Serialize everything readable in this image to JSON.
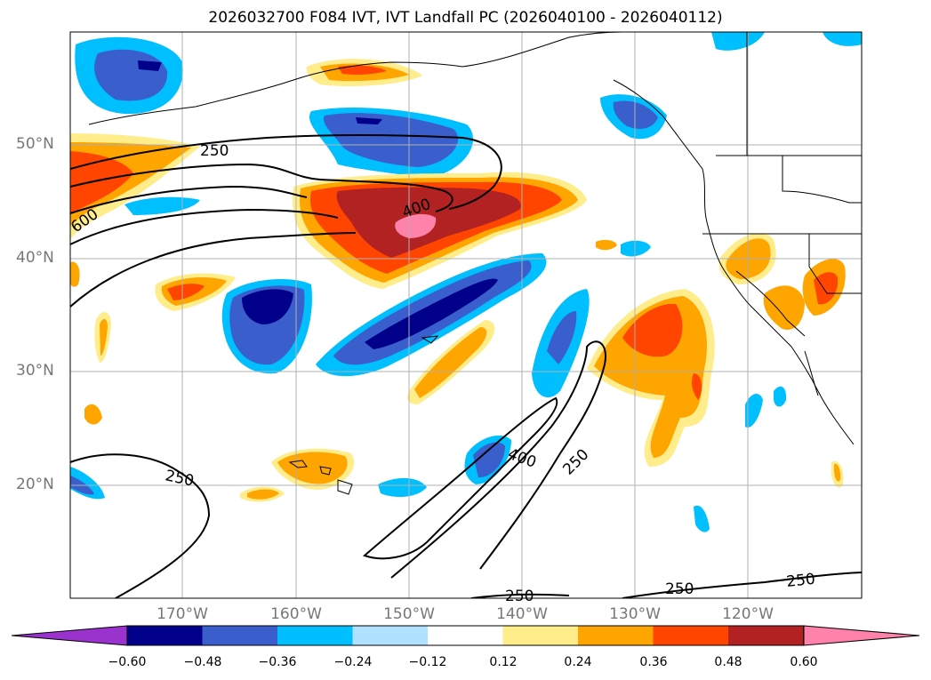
{
  "title": "2026032700 F084 IVT, IVT Landfall PC (2026040100 - 2026040112)",
  "map": {
    "projection": "PlateCarree",
    "lon_range": [
      -180,
      -110
    ],
    "lat_range": [
      10,
      60
    ],
    "lat_ticks": [
      {
        "value": 50,
        "label": "50°N"
      },
      {
        "value": 40,
        "label": "40°N"
      },
      {
        "value": 30,
        "label": "30°N"
      },
      {
        "value": 20,
        "label": "20°N"
      }
    ],
    "lon_ticks": [
      {
        "value": -170,
        "label": "170°W"
      },
      {
        "value": -160,
        "label": "160°W"
      },
      {
        "value": -150,
        "label": "150°W"
      },
      {
        "value": -140,
        "label": "140°W"
      },
      {
        "value": -130,
        "label": "130°W"
      },
      {
        "value": -120,
        "label": "120°W"
      }
    ],
    "contour_labels": [
      "250",
      "600",
      "400",
      "400",
      "250",
      "250",
      "250",
      "250",
      "250"
    ]
  },
  "colorbar": {
    "colors": [
      "#9a32cd",
      "#00008b",
      "#3a5fcd",
      "#00bfff",
      "#b0e2ff",
      "#ffffff",
      "#ffec8b",
      "#ffa500",
      "#ff4500",
      "#b22222",
      "#ff82ab"
    ],
    "labels": [
      "−0.60",
      "−0.48",
      "−0.36",
      "−0.24",
      "−0.12",
      "0.12",
      "0.24",
      "0.36",
      "0.48",
      "0.60"
    ]
  }
}
